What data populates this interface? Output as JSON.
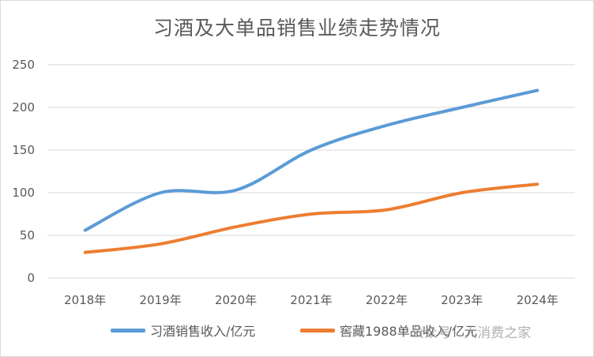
{
  "chart_data": {
    "type": "line",
    "title": "习酒及大单品销售业绩走势情况",
    "categories": [
      "2018年",
      "2019年",
      "2020年",
      "2021年",
      "2022年",
      "2023年",
      "2024年"
    ],
    "ylim": [
      0,
      250
    ],
    "yticks": [
      0,
      50,
      100,
      150,
      200,
      250
    ],
    "grid": true,
    "legend_position": "bottom",
    "series": [
      {
        "name": "习酒销售收入/亿元",
        "color": "#5b9bd5",
        "values": [
          56,
          100,
          103,
          150,
          179,
          200,
          220
        ]
      },
      {
        "name": "窖藏1988单品收入/亿元",
        "color": "#ed7d31",
        "values": [
          30,
          40,
          60,
          75,
          80,
          100,
          110
        ]
      }
    ]
  },
  "watermark": "公众号 · 大消费之家"
}
